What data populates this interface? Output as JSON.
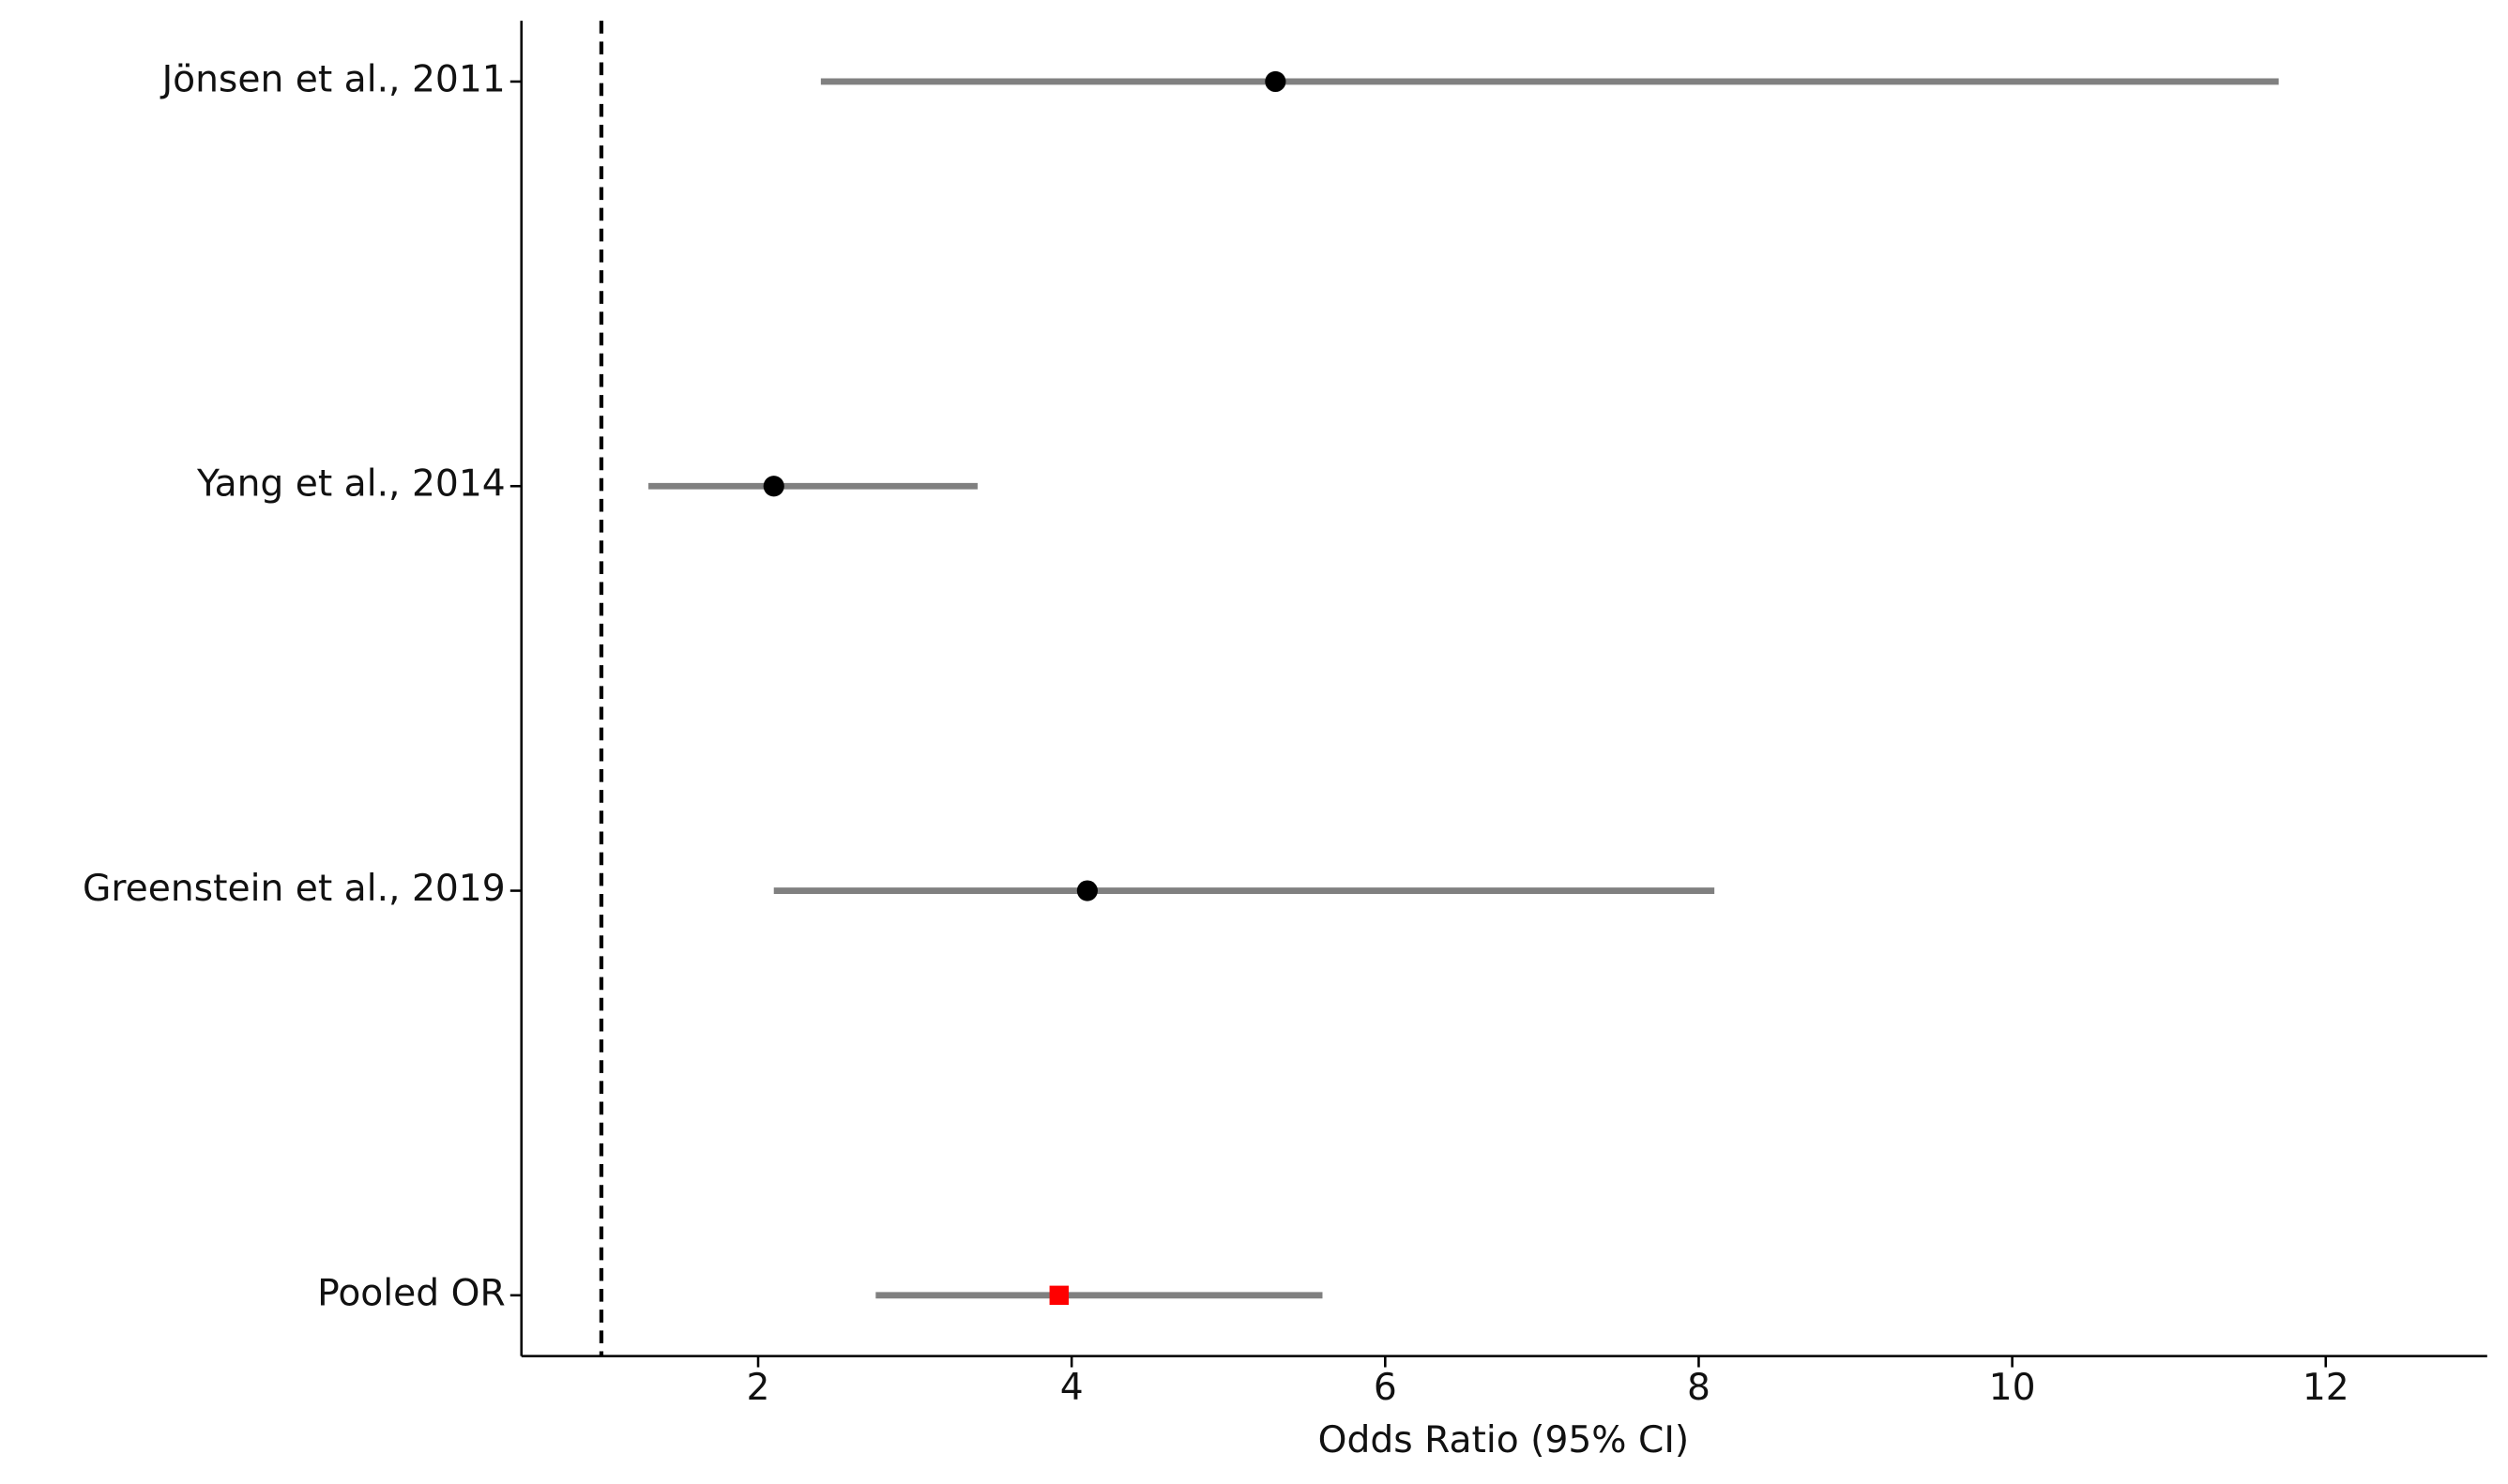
{
  "chart_data": {
    "type": "forest",
    "x_label": "Odds Ratio (95% CI)",
    "categories": [
      "Jönsen et al., 2011",
      "Yang et al., 2014",
      "Greenstein et al., 2019",
      "Pooled OR"
    ],
    "values": [
      5.3,
      2.1,
      4.1,
      3.92
    ],
    "lower": [
      2.4,
      1.3,
      2.1,
      2.75
    ],
    "upper": [
      11.7,
      3.4,
      8.1,
      5.6
    ],
    "point_colors": [
      "black",
      "black",
      "black",
      "red"
    ],
    "markers": [
      "circle",
      "circle",
      "circle",
      "square"
    ],
    "ci_color": "gray",
    "reference_line": 1,
    "xlim": [
      0.49,
      13.03
    ],
    "xticks": [
      2,
      4,
      6,
      8,
      10,
      12
    ]
  }
}
